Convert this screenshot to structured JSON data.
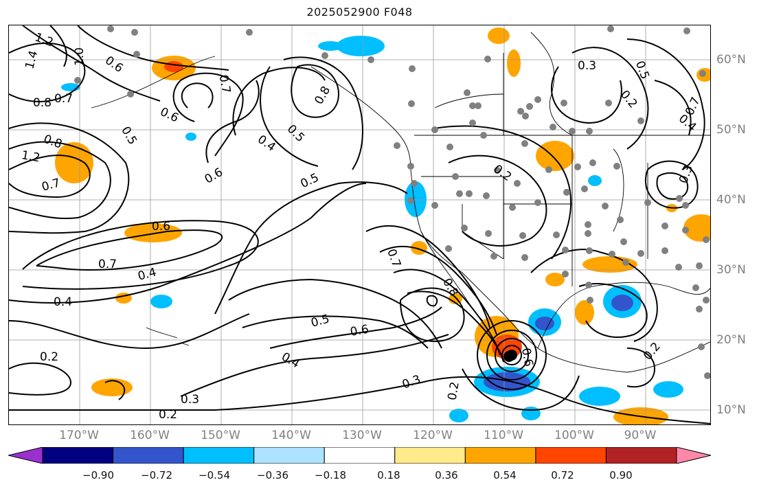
{
  "title": "2025052900 F048",
  "longitude_labels": [
    "170°W",
    "160°W",
    "150°W",
    "140°W",
    "130°W",
    "120°W",
    "110°W",
    "100°W",
    "90°W"
  ],
  "latitude_labels": [
    "60°N",
    "50°N",
    "40°N",
    "30°N",
    "20°N",
    "10°N"
  ],
  "contour_labels": [
    {
      "name": "label-1.2-nw",
      "text": "1.2"
    },
    {
      "name": "label-1.4",
      "text": "1.4"
    },
    {
      "name": "label-1.0",
      "text": "1.0"
    },
    {
      "name": "label-0.8-w",
      "text": "0.8"
    },
    {
      "name": "label-0.7-w",
      "text": "0.7"
    },
    {
      "name": "label-0.6-w",
      "text": "0.6"
    },
    {
      "name": "label-0.6-alaska",
      "text": "0.6"
    },
    {
      "name": "label-0.7-alaska",
      "text": "0.7"
    },
    {
      "name": "label-0.8-coast",
      "text": "0.8"
    },
    {
      "name": "label-0.4-nepac",
      "text": "0.4"
    },
    {
      "name": "label-0.5-nepac",
      "text": "0.5"
    },
    {
      "name": "label-0.6-nepac",
      "text": "0.6"
    },
    {
      "name": "label-0.5-west",
      "text": "0.5"
    },
    {
      "name": "label-0.8-far-w",
      "text": "0.8"
    },
    {
      "name": "label-1.2-far-w",
      "text": "1.2"
    },
    {
      "name": "label-0.7-far-w",
      "text": "0.7"
    },
    {
      "name": "label-0.5-central",
      "text": "0.5"
    },
    {
      "name": "label-0.6-central",
      "text": "0.6"
    },
    {
      "name": "label-0.7-band",
      "text": "0.7"
    },
    {
      "name": "label-0.4-band",
      "text": "0.4"
    },
    {
      "name": "label-0.4-sw",
      "text": "0.4"
    },
    {
      "name": "label-0.2-sw",
      "text": "0.2"
    },
    {
      "name": "label-0.3-sw",
      "text": "0.3"
    },
    {
      "name": "label-0.2-s",
      "text": "0.2"
    },
    {
      "name": "label-0.5-sub",
      "text": "0.5"
    },
    {
      "name": "label-0.6-sub",
      "text": "0.6"
    },
    {
      "name": "label-0.4-sub",
      "text": "0.4"
    },
    {
      "name": "label-0.3-sub",
      "text": "0.3"
    },
    {
      "name": "label-0.7-baja",
      "text": "0.7"
    },
    {
      "name": "label-0.8-baja",
      "text": "0.8"
    },
    {
      "name": "label-0.2-mexico",
      "text": "0.2"
    },
    {
      "name": "label-0.6-mexico",
      "text": "0.6"
    },
    {
      "name": "label-0.3-canada",
      "text": "0.3"
    },
    {
      "name": "label-0.5-canada",
      "text": "0.5"
    },
    {
      "name": "label-0.2-canada",
      "text": "0.2"
    },
    {
      "name": "label-0.7-ne",
      "text": "0.7"
    },
    {
      "name": "label-0.4-ne",
      "text": "0.4"
    },
    {
      "name": "label-0.2-us",
      "text": "0.2"
    },
    {
      "name": "label-0.3-us",
      "text": "0.3"
    },
    {
      "name": "label-0.2-gulf",
      "text": "0.2"
    }
  ],
  "colorbar": {
    "ticks": [
      "−0.90",
      "−0.72",
      "−0.54",
      "−0.36",
      "−0.18",
      "0.18",
      "0.36",
      "0.54",
      "0.72",
      "0.90"
    ],
    "colors": [
      "#9b30d0",
      "#000080",
      "#3355cc",
      "#00bfff",
      "#aee3ff",
      "#ffffff",
      "#ffeb8a",
      "#ffa500",
      "#ff4500",
      "#b22222",
      "#ff88aa"
    ]
  }
}
